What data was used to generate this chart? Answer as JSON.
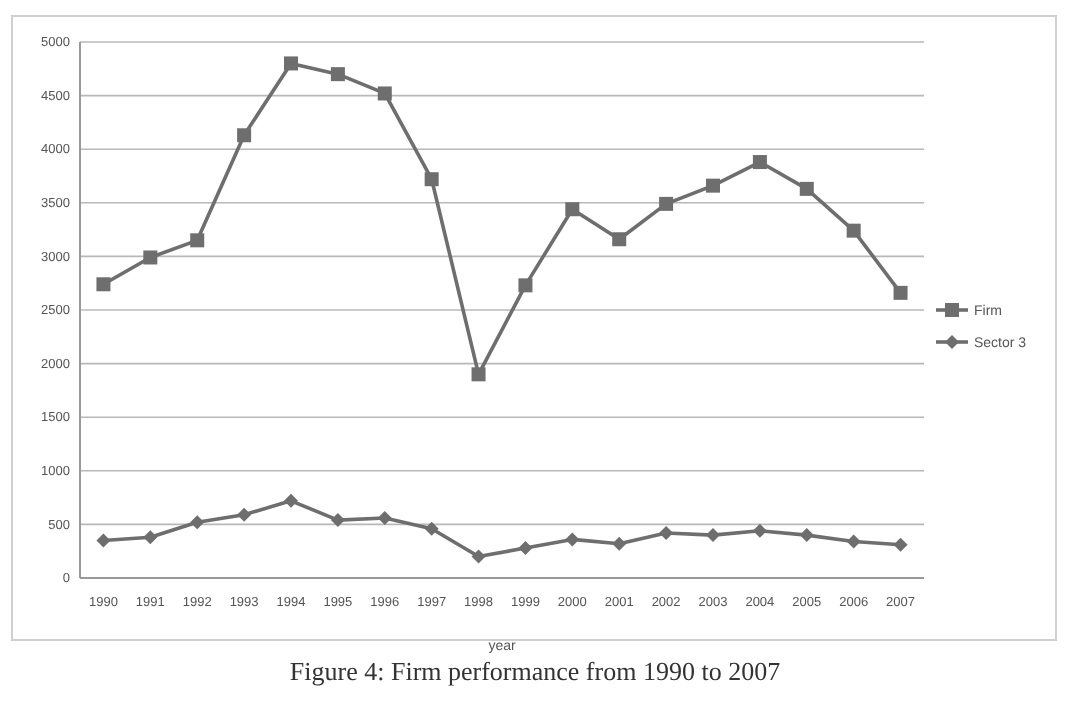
{
  "chart_data": {
    "type": "line",
    "xlabel": "year",
    "annotations": [
      "Figure 4: Firm performance from 1990 to 2007"
    ],
    "categories": [
      "1990",
      "1991",
      "1992",
      "1993",
      "1994",
      "1995",
      "1996",
      "1997",
      "1998",
      "1999",
      "2000",
      "2001",
      "2002",
      "2003",
      "2004",
      "2005",
      "2006",
      "2007"
    ],
    "series": [
      {
        "name": "Firm",
        "color": "#6e6e6e",
        "marker": "square",
        "values": [
          2740,
          2990,
          3150,
          4130,
          4800,
          4700,
          4520,
          3720,
          1900,
          2730,
          3440,
          3160,
          3490,
          3660,
          3880,
          3630,
          3240,
          2660
        ]
      },
      {
        "name": "Sector 3",
        "color": "#6e6e6e",
        "marker": "diamond",
        "values": [
          350,
          380,
          520,
          590,
          720,
          540,
          560,
          460,
          200,
          280,
          360,
          320,
          420,
          400,
          440,
          400,
          340,
          310
        ]
      }
    ],
    "ylim": [
      0,
      5000
    ],
    "yticks": [
      0,
      500,
      1000,
      1500,
      2000,
      2500,
      3000,
      3500,
      4000,
      4500,
      5000
    ],
    "grid": "y",
    "legend": "right"
  }
}
